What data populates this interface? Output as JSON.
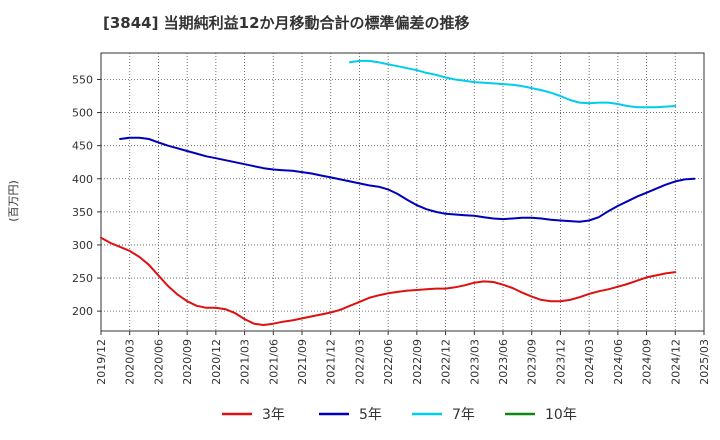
{
  "chart_data": {
    "type": "line",
    "title": "[3844]  当期純利益12か月移動合計の標準偏差の推移",
    "ylabel": "(百万円)",
    "xlabel": "",
    "ylim": [
      170,
      590
    ],
    "yticks": [
      200,
      250,
      300,
      350,
      400,
      450,
      500,
      550
    ],
    "x_tick_labels": [
      "2019/12",
      "2020/03",
      "2020/06",
      "2020/09",
      "2020/12",
      "2021/03",
      "2021/06",
      "2021/09",
      "2021/12",
      "2022/03",
      "2022/06",
      "2022/09",
      "2022/12",
      "2023/03",
      "2023/06",
      "2023/09",
      "2023/12",
      "2024/03",
      "2024/06",
      "2024/09",
      "2024/12",
      "2025/03"
    ],
    "grid": true,
    "legend_position": "bottom",
    "series": [
      {
        "name": "3年",
        "color": "#dd1111",
        "start_index": 0,
        "values": [
          311,
          303,
          297,
          291,
          282,
          270,
          254,
          238,
          225,
          215,
          208,
          205,
          205,
          203,
          197,
          188,
          181,
          179,
          181,
          184,
          186,
          189,
          192,
          195,
          198,
          202,
          208,
          214,
          220,
          224,
          227,
          229,
          231,
          232,
          233,
          234,
          234,
          236,
          239,
          243,
          245,
          244,
          240,
          235,
          228,
          222,
          217,
          215,
          215,
          217,
          221,
          226,
          230,
          233,
          237,
          241,
          246,
          251,
          254,
          257,
          259
        ]
      },
      {
        "name": "5年",
        "color": "#0000bb",
        "start_index": 2,
        "values": [
          460,
          462,
          462,
          460,
          455,
          450,
          446,
          442,
          438,
          434,
          431,
          428,
          425,
          422,
          419,
          416,
          414,
          413,
          412,
          410,
          408,
          405,
          402,
          399,
          396,
          393,
          390,
          388,
          384,
          377,
          368,
          360,
          354,
          350,
          347,
          346,
          345,
          344,
          342,
          340,
          339,
          340,
          341,
          341,
          340,
          338,
          337,
          336,
          335,
          337,
          342,
          351,
          359,
          366,
          373,
          379,
          385,
          391,
          396,
          399,
          400
        ]
      },
      {
        "name": "7年",
        "color": "#00ccee",
        "start_index": 26,
        "values": [
          576,
          578,
          578,
          576,
          573,
          570,
          567,
          564,
          560,
          557,
          553,
          550,
          548,
          546,
          545,
          544,
          543,
          542,
          540,
          537,
          534,
          530,
          525,
          519,
          515,
          514,
          515,
          515,
          513,
          510,
          508,
          508,
          508,
          509,
          510
        ]
      },
      {
        "name": "10年",
        "color": "#118811",
        "start_index": 0,
        "values": []
      }
    ]
  }
}
